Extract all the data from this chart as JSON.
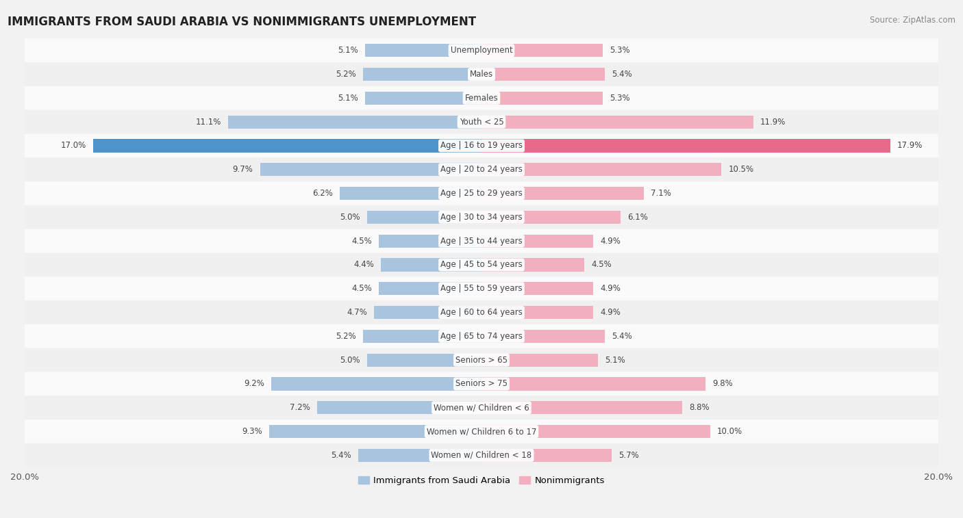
{
  "title": "IMMIGRANTS FROM SAUDI ARABIA VS NONIMMIGRANTS UNEMPLOYMENT",
  "source": "Source: ZipAtlas.com",
  "categories": [
    "Unemployment",
    "Males",
    "Females",
    "Youth < 25",
    "Age | 16 to 19 years",
    "Age | 20 to 24 years",
    "Age | 25 to 29 years",
    "Age | 30 to 34 years",
    "Age | 35 to 44 years",
    "Age | 45 to 54 years",
    "Age | 55 to 59 years",
    "Age | 60 to 64 years",
    "Age | 65 to 74 years",
    "Seniors > 65",
    "Seniors > 75",
    "Women w/ Children < 6",
    "Women w/ Children 6 to 17",
    "Women w/ Children < 18"
  ],
  "immigrants": [
    5.1,
    5.2,
    5.1,
    11.1,
    17.0,
    9.7,
    6.2,
    5.0,
    4.5,
    4.4,
    4.5,
    4.7,
    5.2,
    5.0,
    9.2,
    7.2,
    9.3,
    5.4
  ],
  "nonimmigrants": [
    5.3,
    5.4,
    5.3,
    11.9,
    17.9,
    10.5,
    7.1,
    6.1,
    4.9,
    4.5,
    4.9,
    4.9,
    5.4,
    5.1,
    9.8,
    8.8,
    10.0,
    5.7
  ],
  "immigrant_color": "#a8c4de",
  "nonimmigrant_color": "#f2afc0",
  "highlight_immigrant_color": "#4d94cc",
  "highlight_nonimmigrant_color": "#e8698a",
  "bar_height": 0.55,
  "xlim": 20.0,
  "row_colors_odd": "#f0f0f0",
  "row_colors_even": "#fafafa",
  "legend_immigrant": "Immigrants from Saudi Arabia",
  "legend_nonimmigrant": "Nonimmigrants",
  "label_fontsize": 8.5,
  "cat_fontsize": 8.5,
  "title_fontsize": 12,
  "source_fontsize": 8.5
}
